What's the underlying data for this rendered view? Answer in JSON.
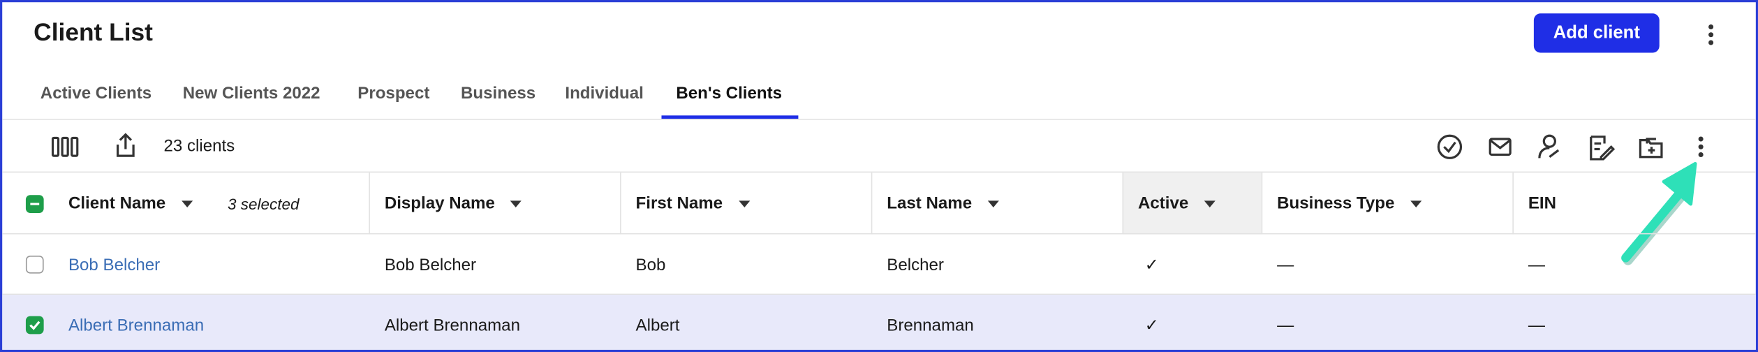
{
  "header": {
    "title": "Client List",
    "add_button": "Add client"
  },
  "tabs": [
    "Active Clients",
    "New Clients 2022",
    "Prospect",
    "Business",
    "Individual",
    "Ben's Clients"
  ],
  "toolbar": {
    "count": "23 clients"
  },
  "table": {
    "columns": [
      "Client Name",
      "Display Name",
      "First Name",
      "Last Name",
      "Active",
      "Business Type",
      "EIN"
    ],
    "selected": "3 selected",
    "rows": [
      [
        "Bob Belcher",
        "Bob Belcher",
        "Bob",
        "Belcher",
        "✓",
        "—",
        "—"
      ],
      [
        "Albert Brennaman",
        "Albert Brennaman",
        "Albert",
        "Brennaman",
        "✓",
        "—",
        "—"
      ]
    ]
  }
}
